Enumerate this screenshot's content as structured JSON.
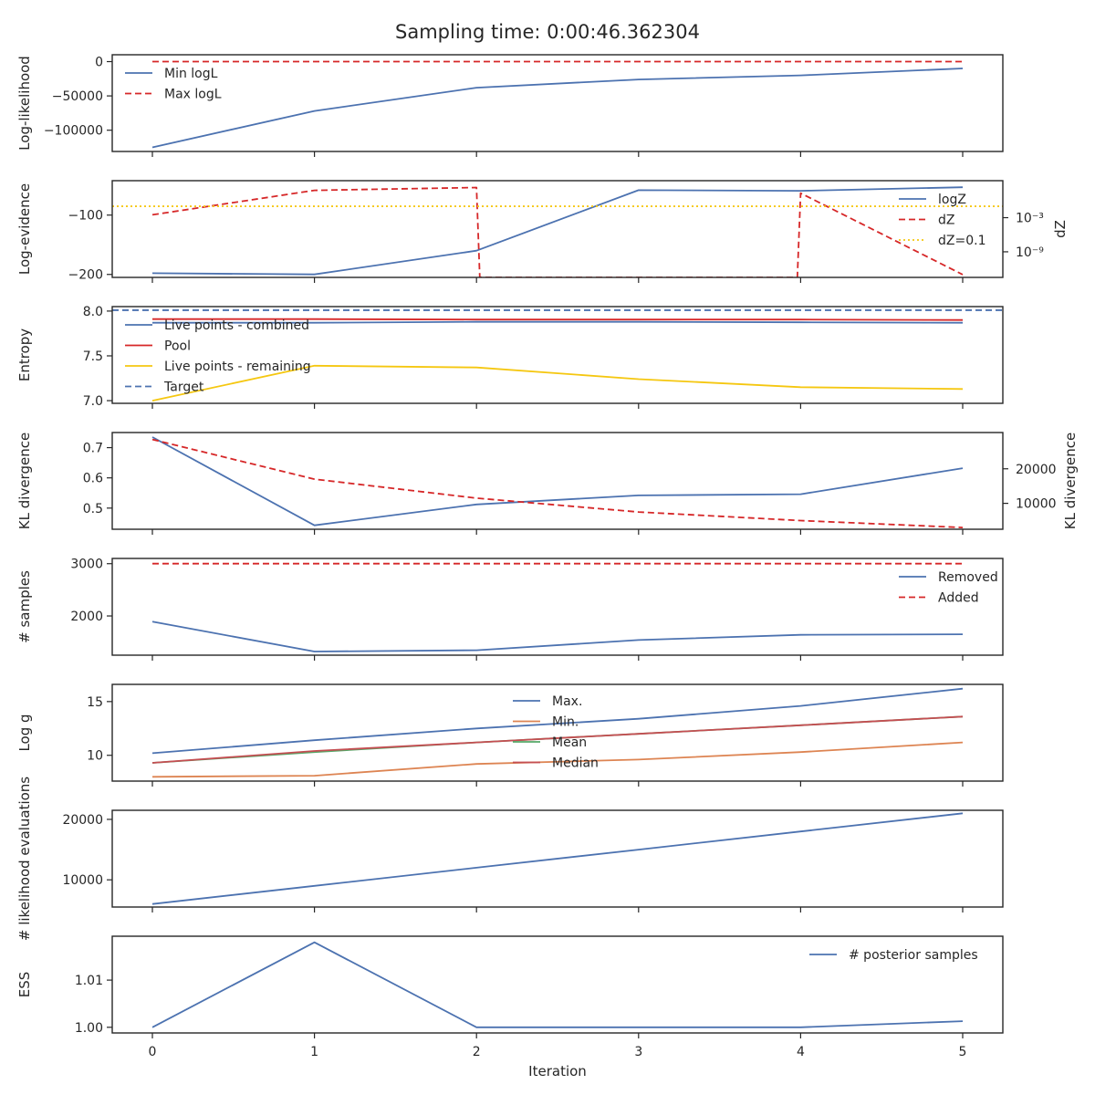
{
  "title": "Sampling time: 0:00:46.362304",
  "colors": {
    "blue": "#4c72b0",
    "red": "#d62728",
    "yellow": "#f5c710",
    "orange": "#dd8452",
    "green": "#55a868",
    "brown": "#c44e52",
    "axis": "#262626"
  },
  "chart_data": [
    {
      "type": "line",
      "ylabel": "Log-likelihood",
      "x": [
        0,
        1,
        2,
        3,
        4,
        5
      ],
      "ylim": [
        -131000,
        10000
      ],
      "yticks": [
        0,
        -50000,
        -100000
      ],
      "ytick_labels": [
        "0",
        "−50000",
        "−100000"
      ],
      "legend_loc": "upper-left",
      "series": [
        {
          "name": "Min logL",
          "values": [
            -125000,
            -72000,
            -38000,
            -26000,
            -20000,
            -10000
          ],
          "color": "#4c72b0",
          "dash": "solid"
        },
        {
          "name": "Max logL",
          "values": [
            0,
            0,
            0,
            0,
            0,
            0
          ],
          "color": "#d62728",
          "dash": "dashed"
        }
      ]
    },
    {
      "type": "line",
      "ylabel": "Log-evidence",
      "ylabel_right": "dZ",
      "x": [
        0,
        1,
        2,
        3,
        4,
        5
      ],
      "ylim": [
        -205,
        -42
      ],
      "yticks": [
        -100,
        -200
      ],
      "ytick_labels": [
        "−100",
        "−200"
      ],
      "right_scale": "log",
      "right_ylim_log10": [
        -13.5,
        3.5
      ],
      "right_yticks_log10": [
        -3,
        -9
      ],
      "right_ytick_labels": [
        "10⁻³",
        "10⁻⁹"
      ],
      "legend_loc": "right",
      "series": [
        {
          "name": "logZ",
          "values": [
            -198,
            -200,
            -160,
            -58,
            -59,
            -53
          ],
          "color": "#4c72b0",
          "dash": "solid",
          "axis": "left"
        },
        {
          "name": "dZ",
          "color": "#d62728",
          "dash": "dashed",
          "axis": "right",
          "log10_points": [
            [
              0,
              -2.5
            ],
            [
              1,
              1.8
            ],
            [
              2,
              2.3
            ],
            [
              2.02,
              -13.5
            ],
            [
              3.98,
              -13.5
            ],
            [
              4,
              1.3
            ],
            [
              5,
              -13.0
            ]
          ]
        },
        {
          "name": "dZ=0.1",
          "color": "#f5c710",
          "dash": "dotted",
          "axis": "right",
          "hline_log10": -1
        }
      ]
    },
    {
      "type": "line",
      "ylabel": "Entropy",
      "x": [
        0,
        1,
        2,
        3,
        4,
        5
      ],
      "ylim": [
        6.97,
        8.05
      ],
      "yticks": [
        8.0,
        7.5,
        7.0
      ],
      "ytick_labels": [
        "8.0",
        "7.5",
        "7.0"
      ],
      "legend_loc": "upper-left",
      "series": [
        {
          "name": "Live points - combined",
          "values": [
            7.87,
            7.87,
            7.88,
            7.88,
            7.875,
            7.87
          ],
          "color": "#4c72b0",
          "dash": "solid"
        },
        {
          "name": "Pool",
          "values": [
            7.91,
            7.91,
            7.905,
            7.905,
            7.905,
            7.9
          ],
          "color": "#d62728",
          "dash": "solid"
        },
        {
          "name": "Live points - remaining",
          "values": [
            7.0,
            7.39,
            7.37,
            7.24,
            7.15,
            7.13
          ],
          "color": "#f5c710",
          "dash": "solid"
        },
        {
          "name": "Target",
          "color": "#4c72b0",
          "dash": "dashed",
          "hline": 8.01
        }
      ]
    },
    {
      "type": "line",
      "ylabel": "KL divergence",
      "ylabel_right": "KL divergence",
      "x": [
        0,
        1,
        2,
        3,
        4,
        5
      ],
      "ylim": [
        0.43,
        0.75
      ],
      "yticks": [
        0.7,
        0.6,
        0.5
      ],
      "ytick_labels": [
        "0.7",
        "0.6",
        "0.5"
      ],
      "right_ylim": [
        2500,
        30500
      ],
      "right_yticks": [
        20000,
        10000
      ],
      "right_ytick_labels": [
        "20000",
        "10000"
      ],
      "series": [
        {
          "name": "",
          "values": [
            0.735,
            0.443,
            0.512,
            0.542,
            0.546,
            0.632
          ],
          "color": "#4c72b0",
          "dash": "solid",
          "axis": "left"
        },
        {
          "name": "",
          "values": [
            28500,
            17000,
            11500,
            7500,
            5000,
            3000
          ],
          "color": "#d62728",
          "dash": "dashed",
          "axis": "right"
        }
      ]
    },
    {
      "type": "line",
      "ylabel": "# samples",
      "x": [
        0,
        1,
        2,
        3,
        4,
        5
      ],
      "ylim": [
        1250,
        3100
      ],
      "yticks": [
        3000,
        2000
      ],
      "ytick_labels": [
        "3000",
        "2000"
      ],
      "legend_loc": "right",
      "series": [
        {
          "name": "Removed",
          "values": [
            1890,
            1320,
            1345,
            1540,
            1640,
            1650
          ],
          "color": "#4c72b0",
          "dash": "solid"
        },
        {
          "name": "Added",
          "values": [
            3000,
            3000,
            3000,
            3000,
            3000,
            3000
          ],
          "color": "#d62728",
          "dash": "dashed"
        }
      ]
    },
    {
      "type": "line",
      "ylabel": "Log g",
      "x": [
        0,
        1,
        2,
        3,
        4,
        5
      ],
      "ylim": [
        7.6,
        16.6
      ],
      "yticks": [
        15,
        10
      ],
      "ytick_labels": [
        "15",
        "10"
      ],
      "legend_loc": "center",
      "series": [
        {
          "name": "Max.",
          "values": [
            10.2,
            11.4,
            12.5,
            13.4,
            14.6,
            16.2
          ],
          "color": "#4c72b0",
          "dash": "solid"
        },
        {
          "name": "Min.",
          "values": [
            8.0,
            8.1,
            9.2,
            9.6,
            10.3,
            11.2
          ],
          "color": "#dd8452",
          "dash": "solid"
        },
        {
          "name": "Mean",
          "values": [
            9.3,
            10.3,
            11.2,
            12.0,
            12.8,
            13.6
          ],
          "color": "#55a868",
          "dash": "solid"
        },
        {
          "name": "Median",
          "values": [
            9.3,
            10.4,
            11.2,
            12.0,
            12.8,
            13.6
          ],
          "color": "#c44e52",
          "dash": "solid"
        }
      ]
    },
    {
      "type": "line",
      "ylabel": "# likelihood evaluations",
      "x": [
        0,
        1,
        2,
        3,
        4,
        5
      ],
      "ylim": [
        5500,
        21500
      ],
      "yticks": [
        20000,
        10000
      ],
      "ytick_labels": [
        "20000",
        "10000"
      ],
      "series": [
        {
          "name": "",
          "values": [
            6000,
            9000,
            12000,
            15000,
            18000,
            21000
          ],
          "color": "#4c72b0",
          "dash": "solid"
        }
      ]
    },
    {
      "type": "line",
      "ylabel": "ESS",
      "xlabel": "Iteration",
      "x": [
        0,
        1,
        2,
        3,
        4,
        5
      ],
      "ylim": [
        0.9988,
        1.0193
      ],
      "yticks": [
        1.01,
        1.0
      ],
      "ytick_labels": [
        "1.01",
        "1.00"
      ],
      "legend_loc": "upper-right",
      "series": [
        {
          "name": "# posterior samples",
          "values": [
            1.0,
            1.018,
            1.0,
            1.0,
            1.0,
            1.0013
          ],
          "color": "#4c72b0",
          "dash": "solid"
        }
      ]
    }
  ],
  "xticks": [
    0,
    1,
    2,
    3,
    4,
    5
  ],
  "xtick_labels": [
    "0",
    "1",
    "2",
    "3",
    "4",
    "5"
  ]
}
